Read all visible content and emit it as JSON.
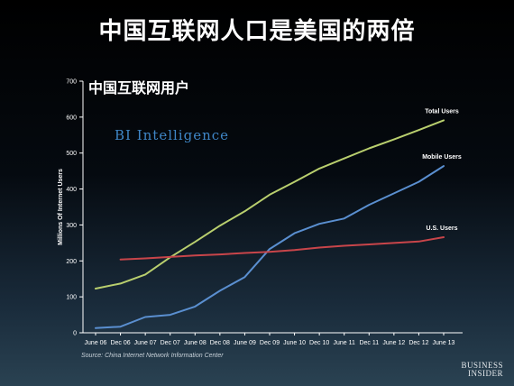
{
  "headline": "中国互联网人口是美国的两倍",
  "brand": "BI Intelligence",
  "source": "Source: China Internet Network Information Center",
  "logo": {
    "line1": "BUSINESS",
    "line2": "INSIDER"
  },
  "colors": {
    "total": "#b9cf6e",
    "mobile": "#5a8fd0",
    "us": "#c8454a",
    "axis": "#ffffff"
  },
  "chart_data": {
    "type": "line",
    "title": "中国互联网用户",
    "xlabel": "",
    "ylabel": "Millions Of Internet Users",
    "ylim": [
      0,
      700
    ],
    "yticks": [
      0,
      100,
      200,
      300,
      400,
      500,
      600,
      700
    ],
    "grid": false,
    "categories": [
      "June 06",
      "Dec 06",
      "June 07",
      "Dec 07",
      "June 08",
      "Dec 08",
      "June 09",
      "Dec 09",
      "June 10",
      "Dec 10",
      "June 11",
      "Dec 11",
      "June 12",
      "Dec 12",
      "June 13"
    ],
    "series": [
      {
        "name": "Total Users",
        "color_key": "total",
        "values": [
          123,
          137,
          162,
          210,
          253,
          298,
          338,
          384,
          420,
          457,
          485,
          513,
          538,
          564,
          591
        ]
      },
      {
        "name": "Mobile Users",
        "color_key": "mobile",
        "values": [
          13,
          17,
          44,
          50,
          73,
          117,
          155,
          233,
          277,
          303,
          318,
          356,
          388,
          420,
          464
        ]
      },
      {
        "name": "U.S. Users",
        "color_key": "us",
        "values": [
          null,
          204,
          207,
          211,
          215,
          218,
          222,
          225,
          230,
          237,
          242,
          246,
          250,
          254,
          266
        ]
      }
    ]
  }
}
